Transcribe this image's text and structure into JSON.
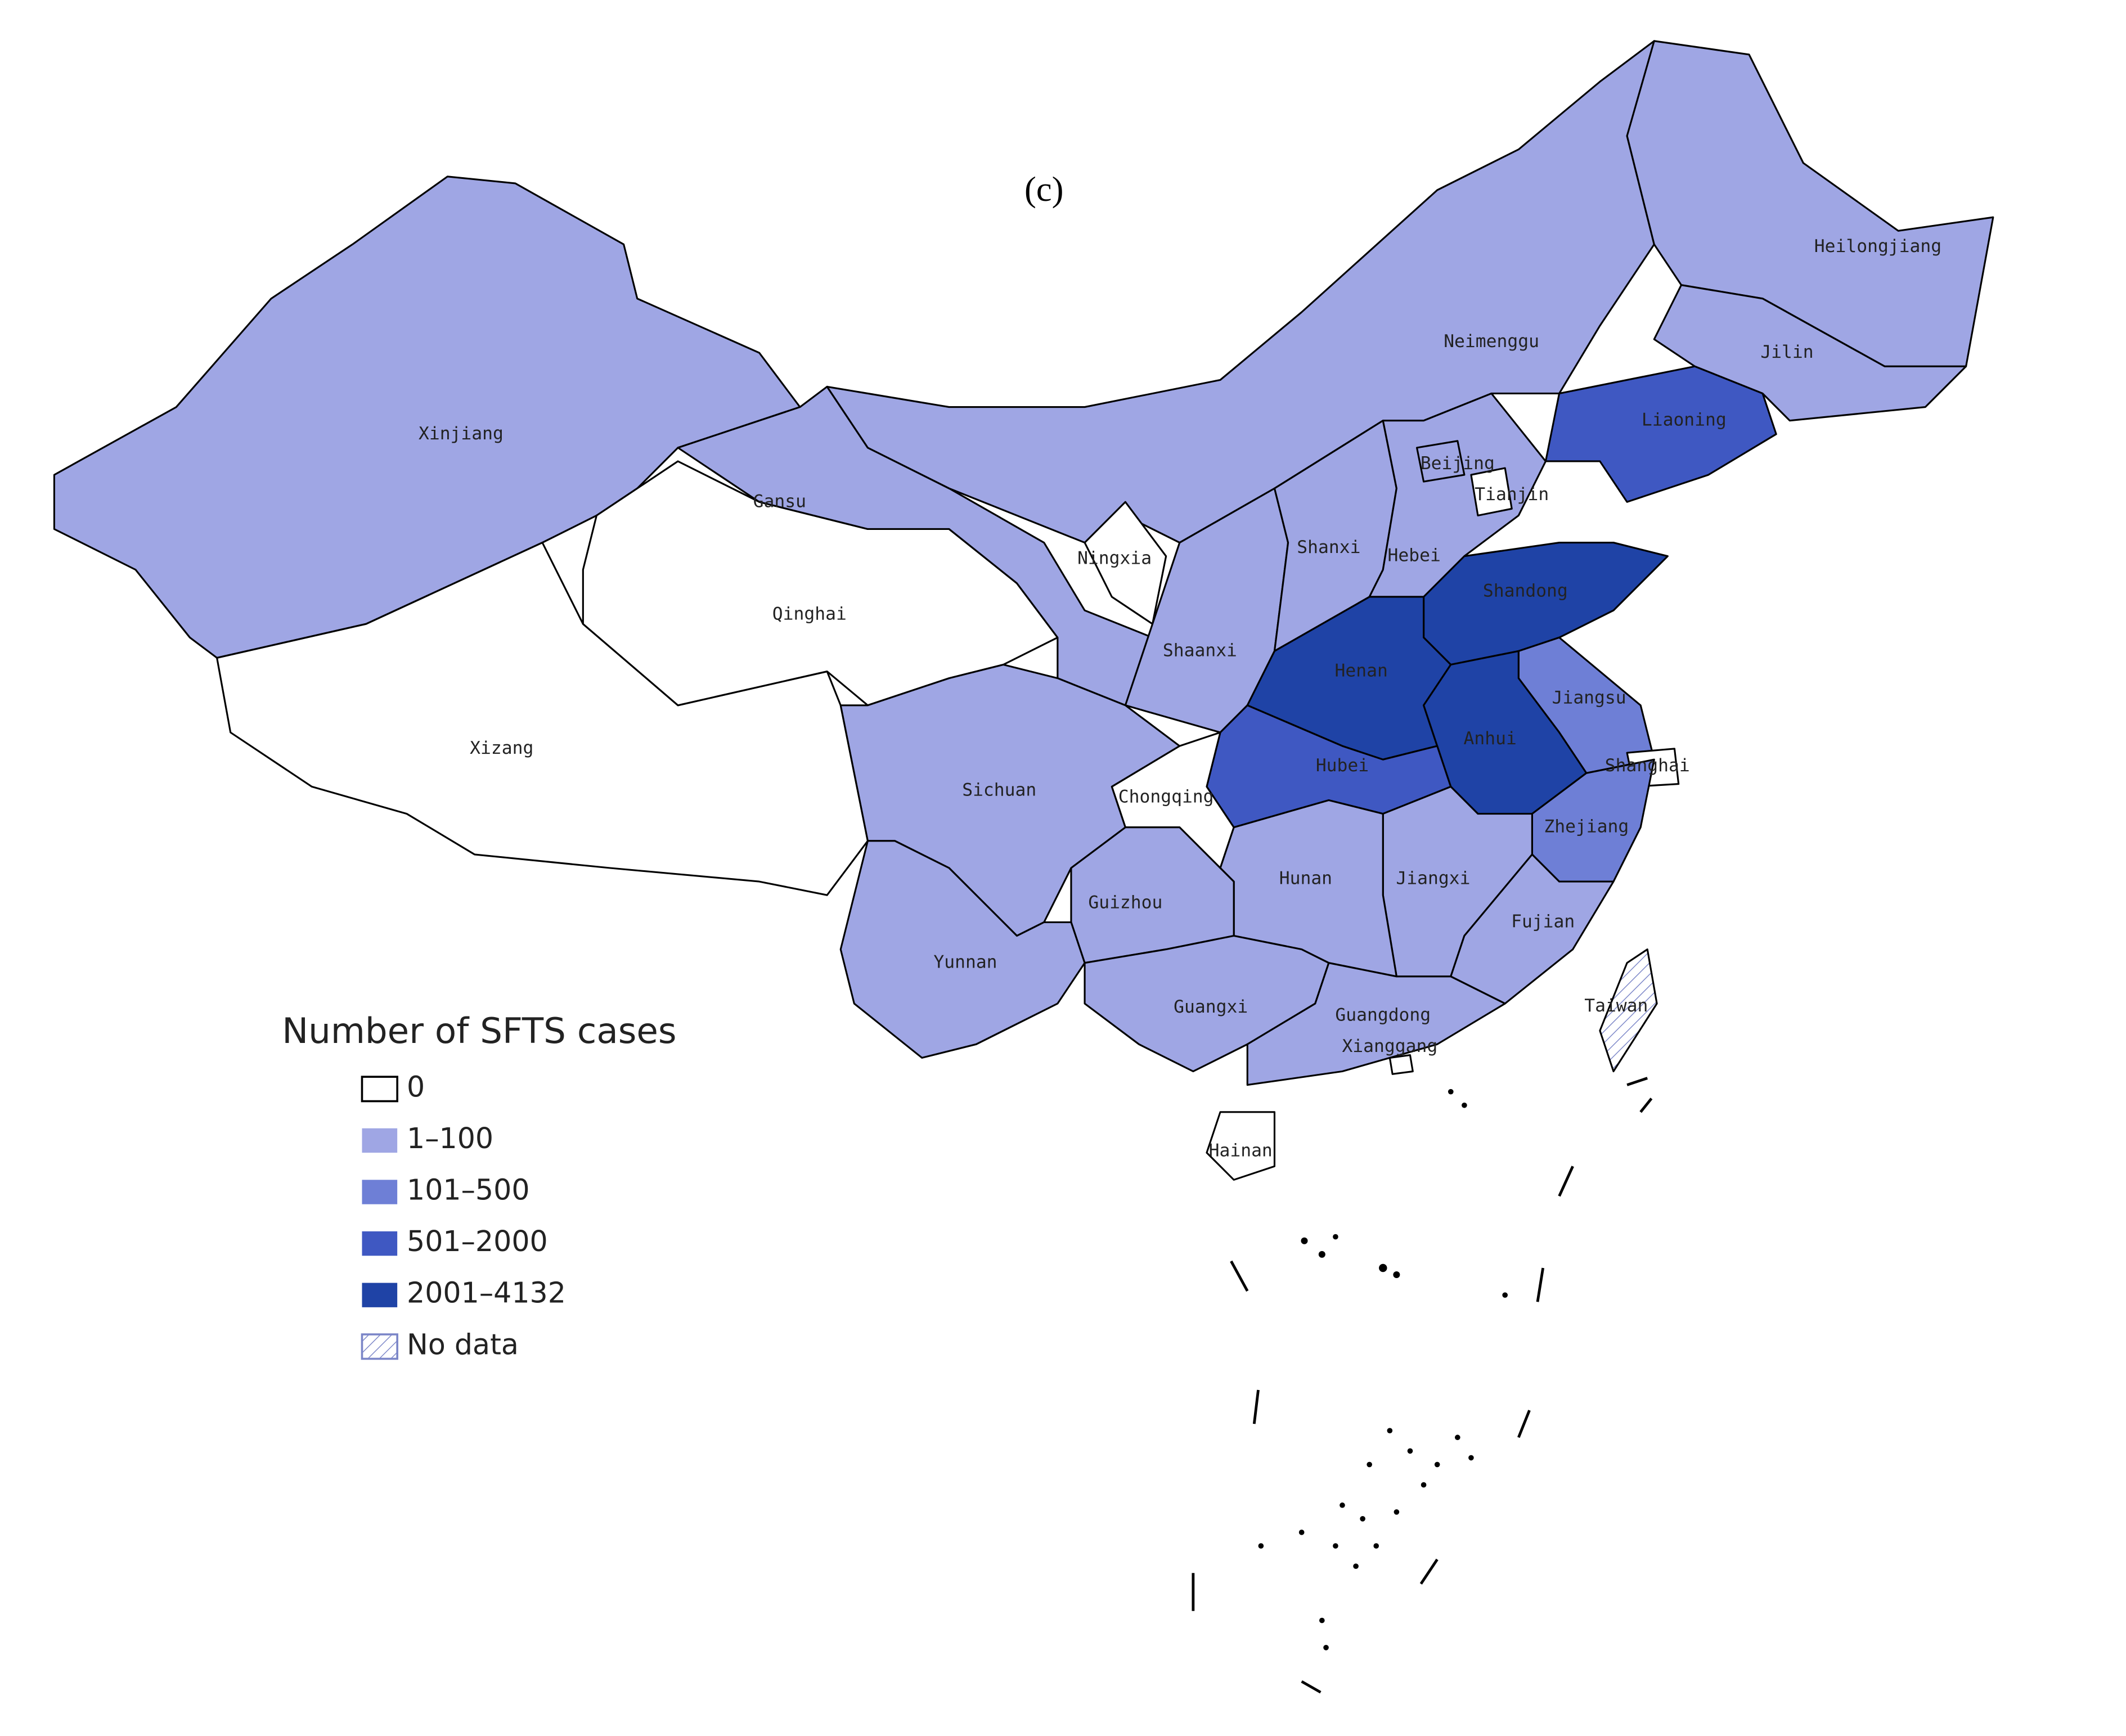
{
  "title": "(c)",
  "legend": {
    "title": "Number of SFTS cases",
    "items": [
      {
        "label": "0",
        "color": "#ffffff"
      },
      {
        "label": "1–100",
        "color": "#9fa6e4"
      },
      {
        "label": "101–500",
        "color": "#6e7fd6"
      },
      {
        "label": "501–2000",
        "color": "#3f58c2"
      },
      {
        "label": "2001–4132",
        "color": "#1f43a6"
      },
      {
        "label": "No data",
        "color": "#ffffff",
        "hatch": true
      }
    ]
  },
  "regions": [
    {
      "label": "Xinjiang",
      "color": "#9fa6e4"
    },
    {
      "label": "Xizang",
      "color": "#ffffff"
    },
    {
      "label": "Qinghai",
      "color": "#ffffff"
    },
    {
      "label": "Gansu",
      "color": "#9fa6e4"
    },
    {
      "label": "Neimenggu",
      "color": "#9fa6e4"
    },
    {
      "label": "Heilongjiang",
      "color": "#9fa6e4"
    },
    {
      "label": "Jilin",
      "color": "#9fa6e4"
    },
    {
      "label": "Liaoning",
      "color": "#3f58c2"
    },
    {
      "label": "Ningxia",
      "color": "#ffffff"
    },
    {
      "label": "Shaanxi",
      "color": "#9fa6e4"
    },
    {
      "label": "Shanxi",
      "color": "#9fa6e4"
    },
    {
      "label": "Hebei",
      "color": "#9fa6e4"
    },
    {
      "label": "Beijing",
      "color": "#9fa6e4"
    },
    {
      "label": "Tianjin",
      "color": "#ffffff"
    },
    {
      "label": "Shandong",
      "color": "#1f43a6"
    },
    {
      "label": "Henan",
      "color": "#1f43a6"
    },
    {
      "label": "Jiangsu",
      "color": "#6e7fd6"
    },
    {
      "label": "Anhui",
      "color": "#1f43a6"
    },
    {
      "label": "Shanghai",
      "color": "#ffffff"
    },
    {
      "label": "Hubei",
      "color": "#3f58c2"
    },
    {
      "label": "Chongqing",
      "color": "#ffffff"
    },
    {
      "label": "Sichuan",
      "color": "#9fa6e4"
    },
    {
      "label": "Zhejiang",
      "color": "#6e7fd6"
    },
    {
      "label": "Jiangxi",
      "color": "#9fa6e4"
    },
    {
      "label": "Hunan",
      "color": "#9fa6e4"
    },
    {
      "label": "Fujian",
      "color": "#9fa6e4"
    },
    {
      "label": "Guizhou",
      "color": "#9fa6e4"
    },
    {
      "label": "Yunnan",
      "color": "#9fa6e4"
    },
    {
      "label": "Guangxi",
      "color": "#9fa6e4"
    },
    {
      "label": "Guangdong",
      "color": "#9fa6e4"
    },
    {
      "label": "Xianggang",
      "color": "#ffffff"
    },
    {
      "label": "Hainan",
      "color": "#ffffff"
    },
    {
      "label": "Taiwan",
      "color": "#ffffff",
      "hatch": true
    }
  ]
}
